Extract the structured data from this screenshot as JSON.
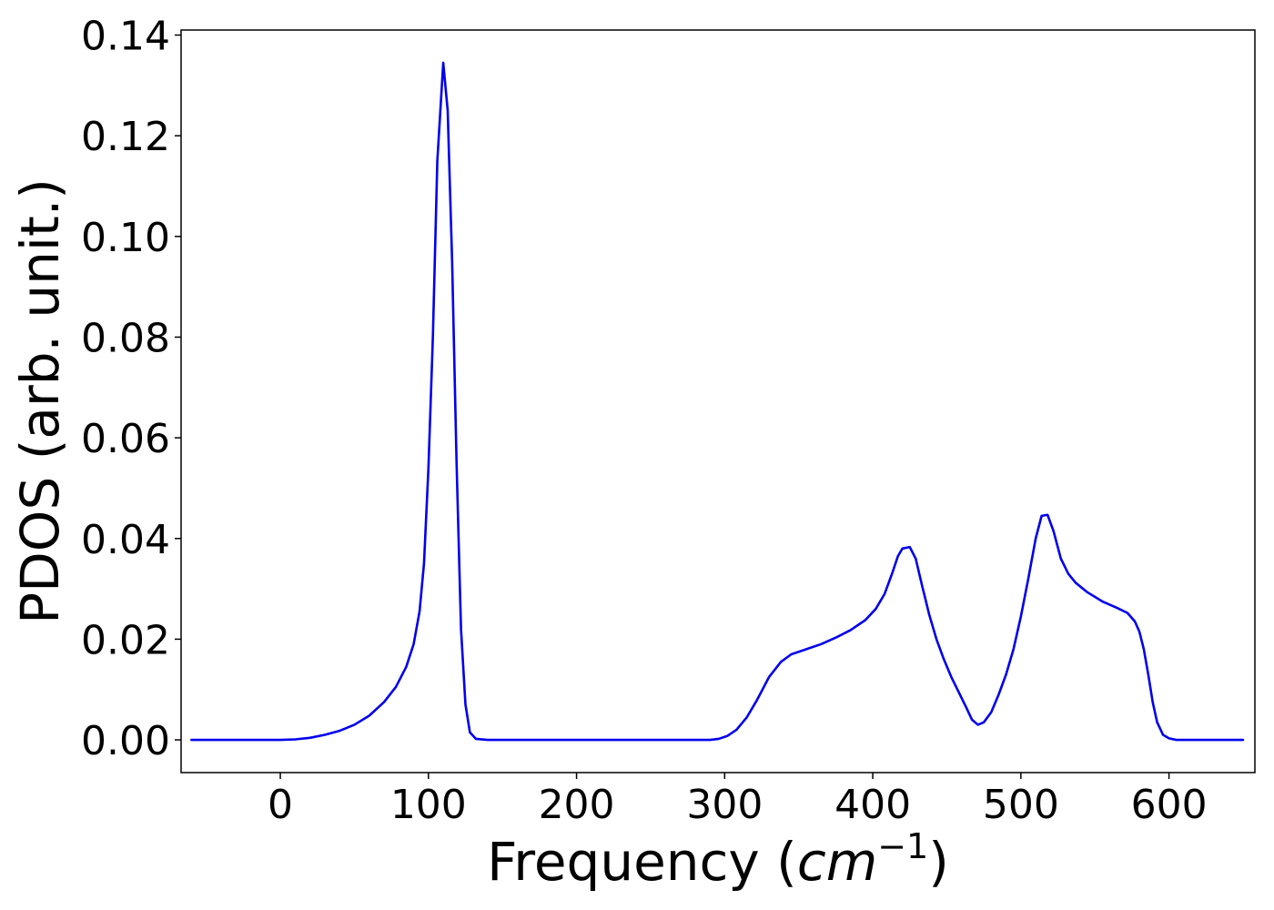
{
  "chart_data": {
    "type": "line",
    "xlabel": "Frequency (",
    "xlabel_unit": "cm",
    "xlabel_sup": "−1",
    "xlabel_close": ")",
    "ylabel": "PDOS (arb. unit.)",
    "xlim": [
      -67,
      658
    ],
    "ylim": [
      -0.0065,
      0.141
    ],
    "x_ticks": [
      0,
      100,
      200,
      300,
      400,
      500,
      600
    ],
    "x_tick_labels": [
      "0",
      "100",
      "200",
      "300",
      "400",
      "500",
      "600"
    ],
    "y_ticks": [
      0.0,
      0.02,
      0.04,
      0.06,
      0.08,
      0.1,
      0.12,
      0.14
    ],
    "y_tick_labels": [
      "0.00",
      "0.02",
      "0.04",
      "0.06",
      "0.08",
      "0.10",
      "0.12",
      "0.14"
    ],
    "grid": false,
    "series": [
      {
        "color": "#0000ee",
        "points": [
          [
            -60,
            0.0
          ],
          [
            -20,
            0.0
          ],
          [
            0,
            0.0
          ],
          [
            10,
            0.0001
          ],
          [
            20,
            0.0004
          ],
          [
            30,
            0.001
          ],
          [
            40,
            0.0018
          ],
          [
            50,
            0.003
          ],
          [
            60,
            0.0048
          ],
          [
            70,
            0.0075
          ],
          [
            78,
            0.0105
          ],
          [
            85,
            0.0145
          ],
          [
            90,
            0.019
          ],
          [
            94,
            0.0255
          ],
          [
            97,
            0.035
          ],
          [
            100,
            0.054
          ],
          [
            103,
            0.08
          ],
          [
            106,
            0.115
          ],
          [
            110,
            0.1345
          ],
          [
            113,
            0.125
          ],
          [
            116,
            0.095
          ],
          [
            119,
            0.055
          ],
          [
            122,
            0.022
          ],
          [
            125,
            0.007
          ],
          [
            128,
            0.0015
          ],
          [
            132,
            0.0002
          ],
          [
            140,
            0.0
          ],
          [
            200,
            0.0
          ],
          [
            290,
            0.0
          ],
          [
            296,
            0.0002
          ],
          [
            302,
            0.0008
          ],
          [
            308,
            0.002
          ],
          [
            315,
            0.0045
          ],
          [
            322,
            0.008
          ],
          [
            330,
            0.0125
          ],
          [
            338,
            0.0155
          ],
          [
            345,
            0.017
          ],
          [
            355,
            0.018
          ],
          [
            365,
            0.019
          ],
          [
            375,
            0.0203
          ],
          [
            385,
            0.0218
          ],
          [
            395,
            0.0238
          ],
          [
            402,
            0.026
          ],
          [
            408,
            0.029
          ],
          [
            413,
            0.033
          ],
          [
            417,
            0.0365
          ],
          [
            420,
            0.038
          ],
          [
            425,
            0.0383
          ],
          [
            429,
            0.036
          ],
          [
            433,
            0.031
          ],
          [
            438,
            0.025
          ],
          [
            443,
            0.02
          ],
          [
            448,
            0.016
          ],
          [
            453,
            0.0125
          ],
          [
            458,
            0.0095
          ],
          [
            463,
            0.0065
          ],
          [
            467,
            0.004
          ],
          [
            471,
            0.003
          ],
          [
            475,
            0.0035
          ],
          [
            480,
            0.0055
          ],
          [
            485,
            0.009
          ],
          [
            490,
            0.013
          ],
          [
            495,
            0.018
          ],
          [
            500,
            0.0245
          ],
          [
            505,
            0.032
          ],
          [
            510,
            0.04
          ],
          [
            514,
            0.0445
          ],
          [
            518,
            0.0447
          ],
          [
            522,
            0.0415
          ],
          [
            527,
            0.036
          ],
          [
            532,
            0.033
          ],
          [
            537,
            0.0312
          ],
          [
            545,
            0.0293
          ],
          [
            555,
            0.0275
          ],
          [
            565,
            0.0262
          ],
          [
            572,
            0.0252
          ],
          [
            577,
            0.0235
          ],
          [
            580,
            0.0215
          ],
          [
            583,
            0.018
          ],
          [
            586,
            0.013
          ],
          [
            589,
            0.0075
          ],
          [
            592,
            0.0035
          ],
          [
            596,
            0.001
          ],
          [
            600,
            0.0003
          ],
          [
            605,
            0.0
          ],
          [
            650,
            0.0
          ]
        ]
      }
    ]
  }
}
